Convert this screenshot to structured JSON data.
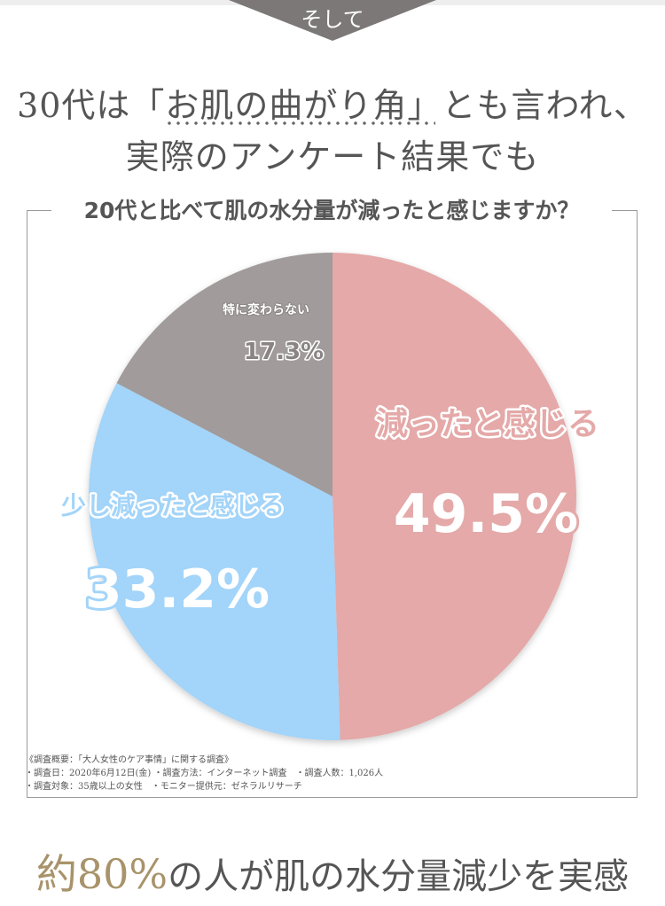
{
  "banner": {
    "label": "そして"
  },
  "heading": {
    "line1": "30代は「お肌の曲がり角」とも言われ、",
    "line2": "実際のアンケート結果でも"
  },
  "chart_data": {
    "type": "pie",
    "title": "20代と比べて肌の水分量が減ったと感じますか？",
    "slices": [
      {
        "label": "減ったと感じる",
        "value": 49.5,
        "display": "49.5%",
        "color": "#e4a9a8"
      },
      {
        "label": "少し減ったと感じる",
        "value": 33.2,
        "display": "33.2%",
        "color": "#a3d4f9"
      },
      {
        "label": "特に変わらない",
        "value": 17.3,
        "display": "17.3%",
        "color": "#a19b9b"
      }
    ]
  },
  "notes": {
    "title": "《調査概要：「大人女性のケア事情」に関する調査》",
    "line1": "・調査日：2020年6月12日(金) ・調査方法：インターネット調査　・調査人数：1,026人",
    "line2": "・調査対象：35歳以上の女性　・モニター提供元：ゼネラルリサーチ"
  },
  "conclusion": {
    "prefix": "約",
    "highlight": "80%",
    "rest": "の人が肌の水分量減少を実感"
  }
}
